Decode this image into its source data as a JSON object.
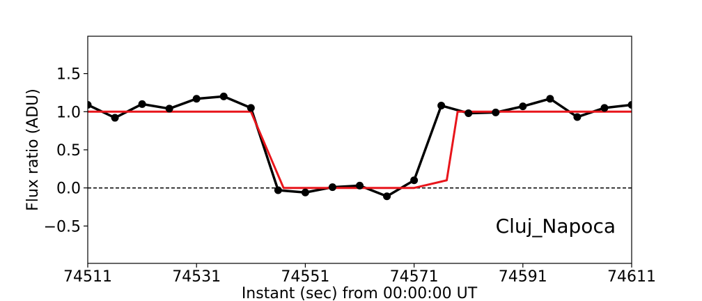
{
  "chart_data": {
    "type": "line",
    "xlabel": "Instant (sec) from 00:00:00 UT",
    "ylabel": "Flux ratio (ADU)",
    "xlim": [
      74511,
      74611
    ],
    "ylim": [
      -0.99,
      1.99
    ],
    "xticks": [
      74511,
      74531,
      74551,
      74571,
      74591,
      74611
    ],
    "xtick_labels": [
      "74511",
      "74531",
      "74551",
      "74571",
      "74591",
      "74611"
    ],
    "yticks": [
      -0.5,
      0.0,
      0.5,
      1.0,
      1.5
    ],
    "ytick_labels": [
      "−0.5",
      "0.0",
      "0.5",
      "1.0",
      "1.5"
    ],
    "grid": false,
    "annotation": "Cluj_Napoca",
    "reference_line": {
      "y": 0.0,
      "style": "dashed",
      "color": "#000000"
    },
    "series": [
      {
        "style": "line-with-markers",
        "color": "#000000",
        "x": [
          74511,
          74516,
          74521,
          74526,
          74531,
          74536,
          74541,
          74546,
          74551,
          74556,
          74561,
          74566,
          74571,
          74576,
          74581,
          74586,
          74591,
          74596,
          74601,
          74606,
          74611
        ],
        "y": [
          1.09,
          0.92,
          1.1,
          1.04,
          1.17,
          1.2,
          1.05,
          -0.03,
          -0.06,
          0.01,
          0.03,
          -0.11,
          0.1,
          1.08,
          0.98,
          0.99,
          1.07,
          1.17,
          0.93,
          1.05,
          1.09
        ]
      },
      {
        "style": "line",
        "color": "#e8151b",
        "x": [
          74511,
          74541,
          74547,
          74571,
          74577,
          74579,
          74611
        ],
        "y": [
          1.0,
          1.0,
          0.0,
          0.0,
          0.1,
          1.0,
          1.0
        ]
      }
    ]
  }
}
